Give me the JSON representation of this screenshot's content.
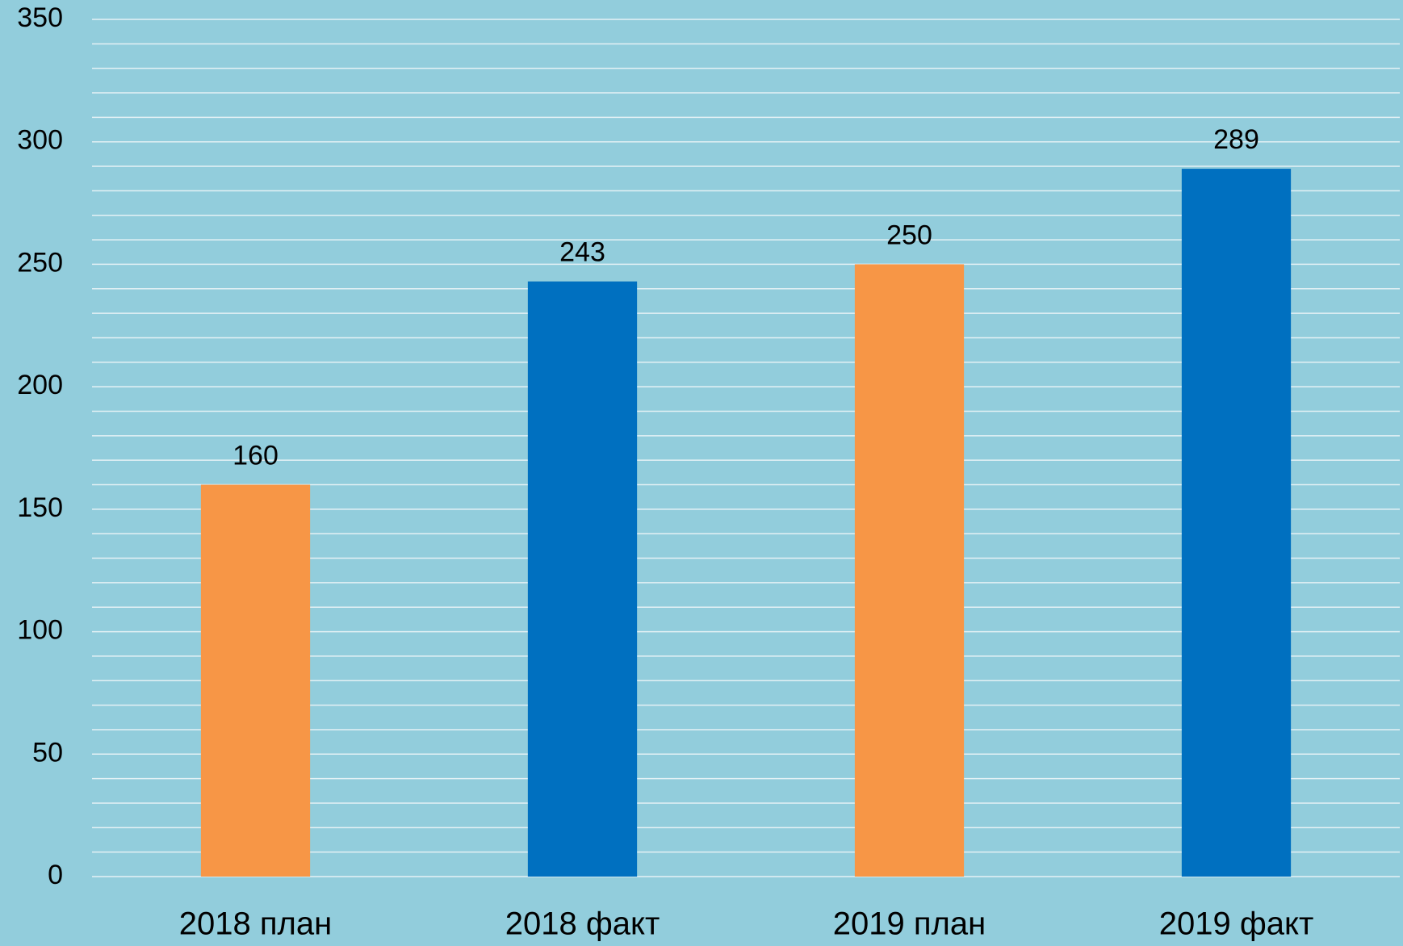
{
  "chart_data": {
    "type": "bar",
    "categories": [
      "2018 план",
      "2018 факт",
      "2019 план",
      "2019 факт"
    ],
    "values": [
      160,
      243,
      250,
      289
    ],
    "colors": [
      "#f79646",
      "#0070c0",
      "#f79646",
      "#0070c0"
    ],
    "ylim": [
      0,
      350
    ],
    "yticks": [
      0,
      50,
      100,
      150,
      200,
      250,
      300,
      350
    ],
    "grid": true,
    "minor_grid_step": 10,
    "data_labels": true,
    "background": "#92cddc"
  }
}
